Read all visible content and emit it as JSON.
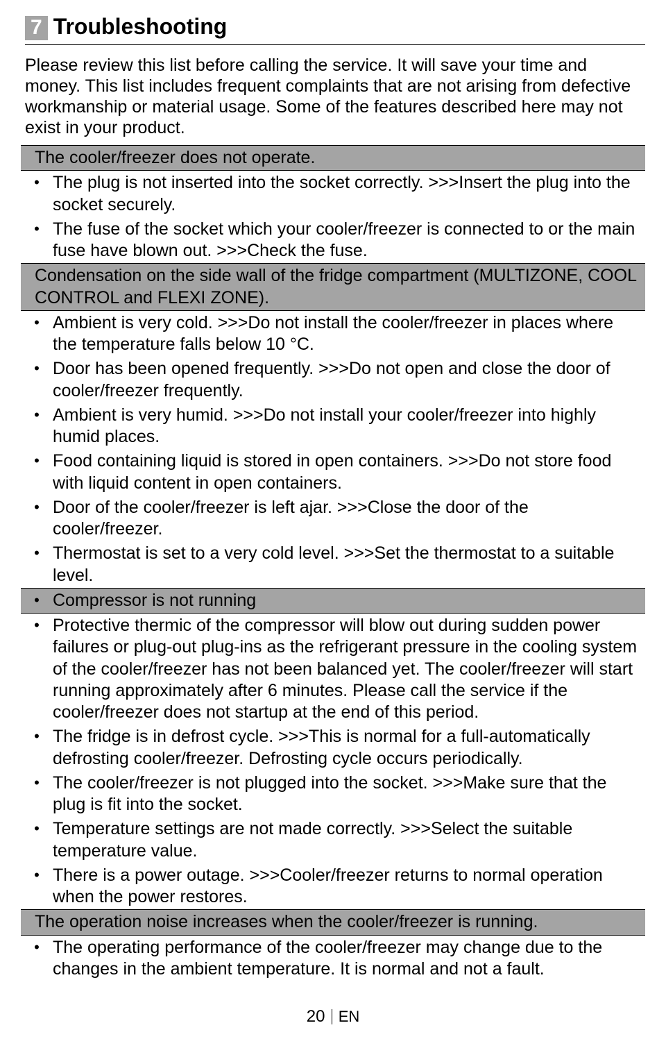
{
  "chapter": {
    "number": "7",
    "title": "Troubleshooting"
  },
  "intro": "Please review this list before calling the service. It will save your time and money. This list includes frequent complaints that are not arising from defective workmanship or material usage. Some of the features described here may not exist in your product.",
  "sections": [
    {
      "heading": "The cooler/freezer does not operate.",
      "banner_style": "text",
      "items": [
        "The plug is not inserted into the socket correctly. >>>Insert the plug into the socket securely.",
        "The fuse of the socket which your cooler/freezer is connected to or the main fuse have blown out. >>>Check the fuse."
      ]
    },
    {
      "heading": "Condensation on the side wall of the fridge compartment (MULTIZONE, COOL CONTROL and FLEXI ZONE).",
      "banner_style": "text",
      "items": [
        "Ambient is very cold. >>>Do not install the cooler/freezer in places where the temperature falls below 10 °C.",
        "Door has been opened frequently. >>>Do not open and close the door of cooler/freezer frequently.",
        "Ambient is very humid. >>>Do not install your cooler/freezer into highly humid places.",
        "Food containing liquid is stored in open containers. >>>Do not store food with liquid content in open containers.",
        "Door of the cooler/freezer is left ajar. >>>Close the door of the cooler/freezer.",
        "Thermostat is set to a very cold level. >>>Set the thermostat to a suitable level."
      ]
    },
    {
      "heading": "Compressor is not running",
      "banner_style": "bullet",
      "items": [
        "Protective thermic of the compressor will blow out during sudden power failures or plug-out plug-ins as the refrigerant pressure in the cooling system of the cooler/freezer has not been balanced yet. The cooler/freezer will start running approximately after 6 minutes. Please call the service if the cooler/freezer does not startup at the end of this period.",
        "The fridge is in defrost cycle. >>>This is normal for a full-automatically defrosting cooler/freezer. Defrosting cycle occurs periodically.",
        "The cooler/freezer is not plugged into the socket. >>>Make sure that the plug is fit into the socket.",
        "Temperature settings are not made correctly. >>>Select the suitable temperature value.",
        "There is a power outage. >>>Cooler/freezer returns to normal operation when the power restores."
      ]
    },
    {
      "heading": "The operation noise increases when the cooler/freezer is running.",
      "banner_style": "text",
      "items": [
        "The operating performance of the cooler/freezer may change due to the changes in the ambient temperature. It is normal and not a fault."
      ]
    }
  ],
  "footer": {
    "page_number": "20",
    "lang": "EN"
  },
  "colors": {
    "banner_bg": "#a4a4a4",
    "text": "#000000",
    "page_bg": "#ffffff"
  }
}
